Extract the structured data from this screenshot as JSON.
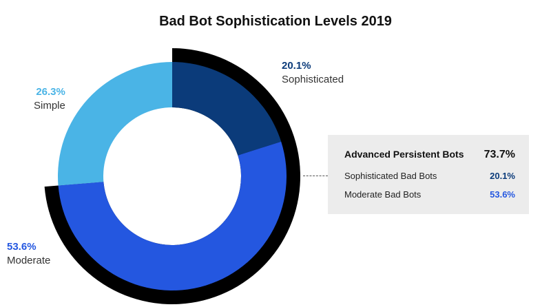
{
  "chart_data": {
    "type": "pie",
    "title": "Bad Bot Sophistication Levels 2019",
    "slices": [
      {
        "name": "Sophisticated",
        "value": 20.1,
        "label": "20.1%",
        "color": "#0b3b7a"
      },
      {
        "name": "Moderate",
        "value": 53.6,
        "label": "53.6%",
        "color": "#2457e0"
      },
      {
        "name": "Simple",
        "value": 26.3,
        "label": "26.3%",
        "color": "#4ab4e6"
      }
    ],
    "highlight": {
      "title": "Advanced Persistent Bots",
      "value": "73.7%",
      "members": [
        "Sophisticated",
        "Moderate"
      ],
      "rows": [
        {
          "label": "Sophisticated Bad Bots",
          "value": "20.1%",
          "color": "#0b3b7a"
        },
        {
          "label": "Moderate Bad Bots",
          "value": "53.6%",
          "color": "#2457e0"
        }
      ]
    }
  }
}
